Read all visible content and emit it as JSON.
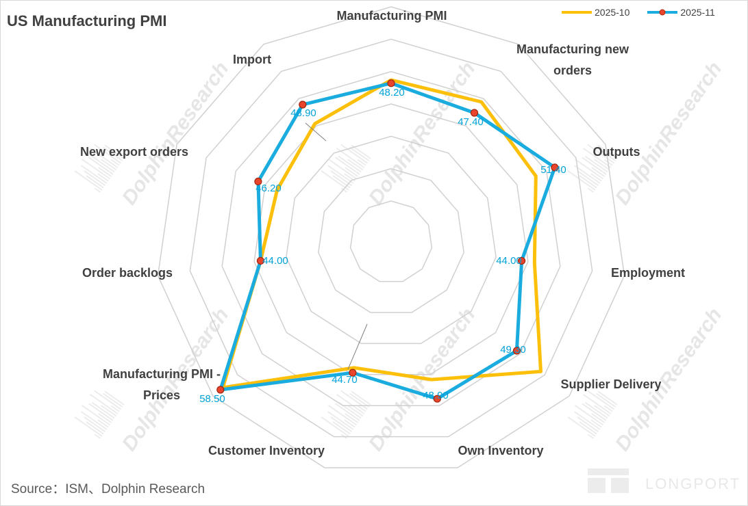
{
  "header": {
    "title": "US Manufacturing PMI"
  },
  "footer": {
    "source": "Source：ISM、Dolphin Research"
  },
  "watermark": {
    "text": "DolphinResearch",
    "brand": "LONGPORT"
  },
  "colors": {
    "series_2025_10": "#fcbf0a",
    "series_2025_11": "#1aacde",
    "marker_fill": "#e8452c",
    "grid": "#d0d0d0"
  },
  "chart_data": {
    "type": "radar",
    "title": "US Manufacturing PMI",
    "categories": [
      "Manufacturing PMI",
      "Manufacturing new orders",
      "Outputs",
      "Employment",
      "Supplier Delivery",
      "Own Inventory",
      "Customer Inventory",
      "Manufacturing PMI - Prices",
      "Order backlogs",
      "New export orders",
      "Import"
    ],
    "series": [
      {
        "name": "2025-10",
        "values": [
          48.7,
          49.4,
          48.2,
          46.0,
          54.2,
          45.8,
          43.9,
          58.0,
          44.0,
          43.0,
          45.4
        ]
      },
      {
        "name": "2025-11",
        "values": [
          48.2,
          47.4,
          51.4,
          44.0,
          49.3,
          48.9,
          44.7,
          58.5,
          44.0,
          46.2,
          48.9
        ]
      }
    ],
    "data_labels": [
      "48.20",
      "47.40",
      "51.40",
      "44.00",
      "49.30",
      "48.90",
      "44.70",
      "58.50",
      "44.00",
      "46.20",
      "48.90"
    ],
    "rlim": [
      30,
      60
    ],
    "grid": true,
    "legend": "top-right"
  }
}
